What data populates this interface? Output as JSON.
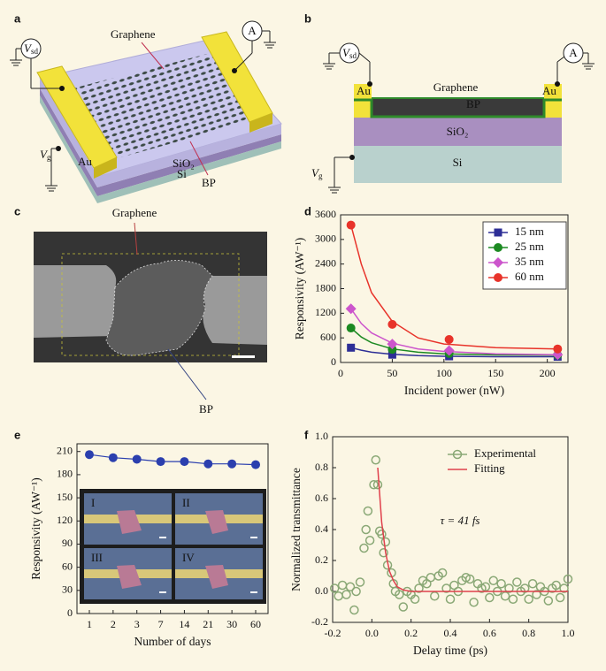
{
  "panel_labels": [
    "a",
    "b",
    "c",
    "d",
    "e",
    "f"
  ],
  "panel_a": {
    "graphene": "Graphene",
    "ammeter": "A",
    "au": "Au",
    "vsd": {
      "symbol": "V",
      "sub": "sd"
    },
    "vg": {
      "symbol": "V",
      "sub": "g"
    },
    "sio2": "SiO₂",
    "si": "Si",
    "bp": "BP"
  },
  "panel_b": {
    "au_left": "Au",
    "au_right": "Au",
    "graphene": "Graphene",
    "bp": "BP",
    "sio2": "SiO₂",
    "si": "Si",
    "vsd": {
      "symbol": "V",
      "sub": "sd"
    },
    "ammeter": "A",
    "vg": {
      "symbol": "V",
      "sub": "g"
    }
  },
  "panel_c": {
    "graphene": "Graphene",
    "bp": "BP"
  },
  "chart_data": [
    {
      "type": "scatter",
      "xlabel": "Incident power (nW)",
      "ylabel": "Responsivity (AW⁻¹)",
      "xlim": [
        0,
        220
      ],
      "xticks": [
        0,
        50,
        100,
        150,
        200
      ],
      "ylim": [
        0,
        3600
      ],
      "yticks": [
        0,
        600,
        1200,
        1800,
        2400,
        3000,
        3600
      ],
      "legend": "upper right",
      "legend_frame": true,
      "series": [
        {
          "name": "15 nm",
          "color": "#2d2e96",
          "marker": "square",
          "x": [
            10,
            50,
            105,
            210
          ],
          "values": [
            360,
            190,
            150,
            140
          ],
          "fit": {
            "x": [
              10,
              20,
              30,
              50,
              75,
              100,
              150,
              210
            ],
            "values": [
              360,
              300,
              250,
              200,
              165,
              150,
              140,
              140
            ]
          }
        },
        {
          "name": "25 nm",
          "color": "#1c8a22",
          "marker": "circle",
          "x": [
            10,
            50,
            105,
            210
          ],
          "values": [
            840,
            320,
            220,
            180
          ],
          "fit": {
            "x": [
              10,
              20,
              30,
              50,
              75,
              100,
              150,
              210
            ],
            "values": [
              840,
              620,
              480,
              330,
              250,
              210,
              185,
              180
            ]
          }
        },
        {
          "name": "35 nm",
          "color": "#cc55cc",
          "marker": "diamond",
          "x": [
            10,
            50,
            105,
            210
          ],
          "values": [
            1310,
            450,
            290,
            190
          ],
          "fit": {
            "x": [
              10,
              20,
              30,
              50,
              75,
              100,
              150,
              210
            ],
            "values": [
              1310,
              950,
              720,
              470,
              330,
              270,
              210,
              190
            ]
          }
        },
        {
          "name": "60 nm",
          "color": "#e8332a",
          "marker": "circle",
          "x": [
            10,
            50,
            105,
            210
          ],
          "values": [
            3350,
            930,
            560,
            330
          ],
          "fit": {
            "x": [
              10,
              20,
              30,
              50,
              75,
              100,
              150,
              210
            ],
            "values": [
              3350,
              2400,
              1700,
              1000,
              600,
              450,
              360,
              330
            ]
          }
        }
      ]
    },
    {
      "type": "line",
      "xlabel": "Number of days",
      "ylabel": "Responsivity (AW⁻¹)",
      "categories": [
        "1",
        "2",
        "3",
        "7",
        "14",
        "21",
        "30",
        "60"
      ],
      "values": [
        206,
        202,
        200,
        197,
        197,
        194,
        194,
        193
      ],
      "color": "#2b3fae",
      "ylim": [
        0,
        220
      ],
      "yticks": [
        0,
        30,
        60,
        90,
        120,
        150,
        180,
        210
      ],
      "inset_labels": [
        "I",
        "II",
        "III",
        "IV"
      ]
    },
    {
      "type": "scatter",
      "xlabel": "Delay time (ps)",
      "ylabel": "Normalized transmittance",
      "xlim": [
        -0.2,
        1.0
      ],
      "xticks": [
        -0.2,
        {
          "value": 0,
          "label": "0.0"
        },
        0.2,
        0.4,
        0.6,
        0.8,
        {
          "value": 1,
          "label": "1.0"
        }
      ],
      "ylim": [
        -0.2,
        1.0
      ],
      "yticks": [
        -0.2,
        {
          "value": 0,
          "label": "0.0"
        },
        0.2,
        0.4,
        0.6,
        0.8,
        {
          "value": 1,
          "label": "1.0"
        }
      ],
      "legend": "upper right",
      "legend_frame": false,
      "annotation": "τ = 41 fs",
      "series": [
        {
          "name": "Experimental",
          "color": "#8aa876",
          "marker": "open-circle",
          "x": [
            -0.19,
            -0.17,
            -0.15,
            -0.13,
            -0.11,
            -0.09,
            -0.08,
            -0.06,
            -0.04,
            -0.03,
            -0.02,
            -0.01,
            0.01,
            0.02,
            0.03,
            0.04,
            0.05,
            0.06,
            0.07,
            0.08,
            0.1,
            0.11,
            0.12,
            0.14,
            0.16,
            0.18,
            0.2,
            0.22,
            0.24,
            0.26,
            0.28,
            0.3,
            0.32,
            0.34,
            0.36,
            0.38,
            0.4,
            0.42,
            0.44,
            0.46,
            0.48,
            0.5,
            0.52,
            0.54,
            0.56,
            0.58,
            0.6,
            0.62,
            0.64,
            0.66,
            0.68,
            0.7,
            0.72,
            0.74,
            0.76,
            0.78,
            0.8,
            0.82,
            0.84,
            0.86,
            0.88,
            0.9,
            0.92,
            0.94,
            0.96,
            0.98,
            1.0
          ],
          "values": [
            0.02,
            -0.03,
            0.04,
            -0.02,
            0.03,
            -0.12,
            0.0,
            0.06,
            0.28,
            0.4,
            0.52,
            0.33,
            0.69,
            0.85,
            0.69,
            0.39,
            0.37,
            0.25,
            0.32,
            0.17,
            0.12,
            0.05,
            0.0,
            -0.02,
            -0.1,
            0.0,
            -0.02,
            -0.05,
            0.02,
            0.07,
            0.05,
            0.09,
            -0.03,
            0.1,
            0.12,
            0.02,
            -0.05,
            0.04,
            0.0,
            0.07,
            0.09,
            0.08,
            -0.07,
            0.05,
            0.02,
            0.03,
            -0.04,
            0.07,
            0.0,
            0.05,
            -0.03,
            0.02,
            -0.05,
            0.06,
            0.0,
            0.02,
            -0.05,
            0.05,
            -0.02,
            0.03,
            0.0,
            -0.06,
            0.02,
            0.04,
            -0.04,
            0.02,
            0.08
          ]
        },
        {
          "name": "Fitting",
          "color": "#e0404c",
          "marker": "line",
          "x": [
            0.03,
            0.05,
            0.07,
            0.09,
            0.11,
            0.13,
            0.16,
            0.2,
            0.4,
            0.6,
            0.8,
            1.0
          ],
          "values": [
            0.8,
            0.45,
            0.25,
            0.13,
            0.07,
            0.03,
            0.01,
            0,
            0,
            0,
            0,
            0
          ]
        }
      ]
    }
  ]
}
